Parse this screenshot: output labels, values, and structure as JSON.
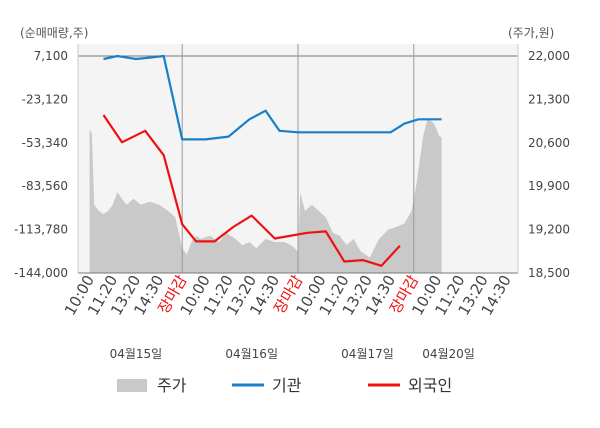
{
  "chart_data": {
    "type": "line",
    "left_axis_title": "(순매매량,주)",
    "right_axis_title": "(주가,원)",
    "left_ticks": [
      "7,100",
      "-23,120",
      "-53,340",
      "-83,560",
      "-113,780",
      "-144,000"
    ],
    "right_ticks": [
      "22,000",
      "21,300",
      "20,600",
      "19,900",
      "19,200",
      "18,500"
    ],
    "ylim_left": [
      -144000,
      7100
    ],
    "ylim_right": [
      18500,
      22000
    ],
    "x_labels": [
      "10:00",
      "11:20",
      "13:20",
      "14:30",
      "장마감",
      "10:00",
      "11:20",
      "13:20",
      "14:30",
      "장마감",
      "10:00",
      "11:20",
      "13:20",
      "14:30",
      "장마감",
      "10:00",
      "11:20",
      "13:20",
      "14:30"
    ],
    "close_label": "장마감",
    "day_labels": [
      {
        "text": "04월15일",
        "index": 2
      },
      {
        "text": "04월16일",
        "index": 7
      },
      {
        "text": "04월17일",
        "index": 12
      },
      {
        "text": "04월20일",
        "index": 15.5
      }
    ],
    "day_separators": [
      4,
      9,
      14
    ],
    "legend": [
      {
        "label": "주가",
        "color": "#c9c9c9",
        "kind": "area"
      },
      {
        "label": "기관",
        "color": "#1a7fc9",
        "kind": "line"
      },
      {
        "label": "외국인",
        "color": "#ee1111",
        "kind": "line"
      }
    ],
    "series": [
      {
        "name": "기관",
        "axis": "left",
        "color": "#1a7fc9",
        "points": [
          [
            0.6,
            5000
          ],
          [
            1.2,
            7100
          ],
          [
            2,
            5000
          ],
          [
            2.6,
            6000
          ],
          [
            3.2,
            7100
          ],
          [
            4,
            -51000
          ],
          [
            5,
            -51000
          ],
          [
            6,
            -49000
          ],
          [
            6.9,
            -37000
          ],
          [
            7.6,
            -31000
          ],
          [
            8.2,
            -45000
          ],
          [
            9,
            -46000
          ],
          [
            10,
            -46000
          ],
          [
            11,
            -46000
          ],
          [
            11.8,
            -46000
          ],
          [
            13,
            -46000
          ],
          [
            13.6,
            -40000
          ],
          [
            14.2,
            -37000
          ],
          [
            15.2,
            -37000
          ]
        ]
      },
      {
        "name": "외국인",
        "axis": "left",
        "color": "#ee1111",
        "points": [
          [
            0.6,
            -34000
          ],
          [
            1.4,
            -53000
          ],
          [
            2.4,
            -45000
          ],
          [
            3.2,
            -62000
          ],
          [
            4,
            -110000
          ],
          [
            4.6,
            -122000
          ],
          [
            5.4,
            -122000
          ],
          [
            6.2,
            -112000
          ],
          [
            7,
            -104000
          ],
          [
            8,
            -120000
          ],
          [
            9.4,
            -116000
          ],
          [
            10.2,
            -115000
          ],
          [
            11,
            -136000
          ],
          [
            11.8,
            -135000
          ],
          [
            12.6,
            -139000
          ],
          [
            13.4,
            -125000
          ]
        ]
      },
      {
        "name": "주가",
        "axis": "right",
        "color": "#c9c9c9",
        "points": [
          [
            0,
            20820
          ],
          [
            0.1,
            20750
          ],
          [
            0.2,
            19600
          ],
          [
            0.4,
            19500
          ],
          [
            0.6,
            19450
          ],
          [
            0.8,
            19500
          ],
          [
            1,
            19600
          ],
          [
            1.2,
            19800
          ],
          [
            1.4,
            19700
          ],
          [
            1.6,
            19600
          ],
          [
            1.9,
            19700
          ],
          [
            2.2,
            19600
          ],
          [
            2.6,
            19650
          ],
          [
            3,
            19600
          ],
          [
            3.4,
            19500
          ],
          [
            3.7,
            19400
          ],
          [
            4,
            18900
          ],
          [
            4.2,
            18800
          ],
          [
            4.4,
            19000
          ],
          [
            4.6,
            19100
          ],
          [
            4.8,
            19050
          ],
          [
            5.2,
            19100
          ],
          [
            5.6,
            19000
          ],
          [
            5.9,
            19150
          ],
          [
            6.3,
            19050
          ],
          [
            6.6,
            18950
          ],
          [
            6.9,
            19000
          ],
          [
            7.2,
            18900
          ],
          [
            7.6,
            19050
          ],
          [
            8,
            19000
          ],
          [
            8.4,
            19000
          ],
          [
            8.7,
            18950
          ],
          [
            9,
            18850
          ],
          [
            9.1,
            19800
          ],
          [
            9.3,
            19500
          ],
          [
            9.6,
            19600
          ],
          [
            9.9,
            19500
          ],
          [
            10.2,
            19400
          ],
          [
            10.5,
            19150
          ],
          [
            10.8,
            19100
          ],
          [
            11.1,
            18950
          ],
          [
            11.4,
            19050
          ],
          [
            11.7,
            18850
          ],
          [
            12.1,
            18750
          ],
          [
            12.5,
            19050
          ],
          [
            12.9,
            19200
          ],
          [
            13.3,
            19250
          ],
          [
            13.6,
            19300
          ],
          [
            13.9,
            19500
          ],
          [
            14.1,
            19900
          ],
          [
            14.4,
            20700
          ],
          [
            14.6,
            21000
          ],
          [
            14.9,
            20900
          ],
          [
            15.1,
            20700
          ],
          [
            15.2,
            20700
          ]
        ]
      }
    ]
  }
}
